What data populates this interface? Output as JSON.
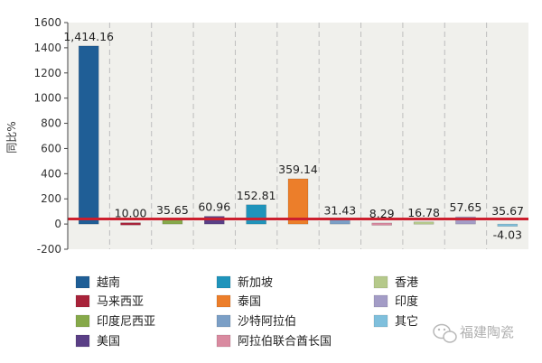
{
  "chart_data": {
    "type": "bar",
    "title": "",
    "xlabel": "",
    "ylabel": "同比%",
    "ylim": [
      -200,
      1600
    ],
    "yticks": [
      -200,
      0,
      200,
      400,
      600,
      800,
      1000,
      1200,
      1400,
      1600
    ],
    "grid": "vertical dashed",
    "legend_position": "bottom",
    "reference_line": {
      "value": 40,
      "color": "#cc1f2e"
    },
    "categories": [
      "越南",
      "马来西亚",
      "印度尼西亚",
      "美国",
      "新加坡",
      "泰国",
      "沙特阿拉伯",
      "阿拉伯联合酋长国",
      "香港",
      "印度",
      "其它"
    ],
    "values": [
      1414.16,
      10.0,
      35.65,
      60.96,
      152.81,
      359.14,
      31.43,
      8.29,
      16.78,
      57.65,
      -4.03
    ],
    "value_labels": [
      "1,414.16",
      "10.00",
      "35.65",
      "60.96",
      "152.81",
      "359.14",
      "31.43",
      "8.29",
      "16.78",
      "57.65",
      "-4.03"
    ],
    "extra_label": "35.67",
    "colors": [
      "#1f5e96",
      "#a8233a",
      "#86a94a",
      "#5a3f86",
      "#1f94bb",
      "#ec7e2a",
      "#7b9fc6",
      "#d98aa0",
      "#b5c98b",
      "#a39cc6",
      "#7fbfdc"
    ]
  },
  "watermark": {
    "text": "福建陶瓷",
    "icon": "wechat-icon"
  }
}
